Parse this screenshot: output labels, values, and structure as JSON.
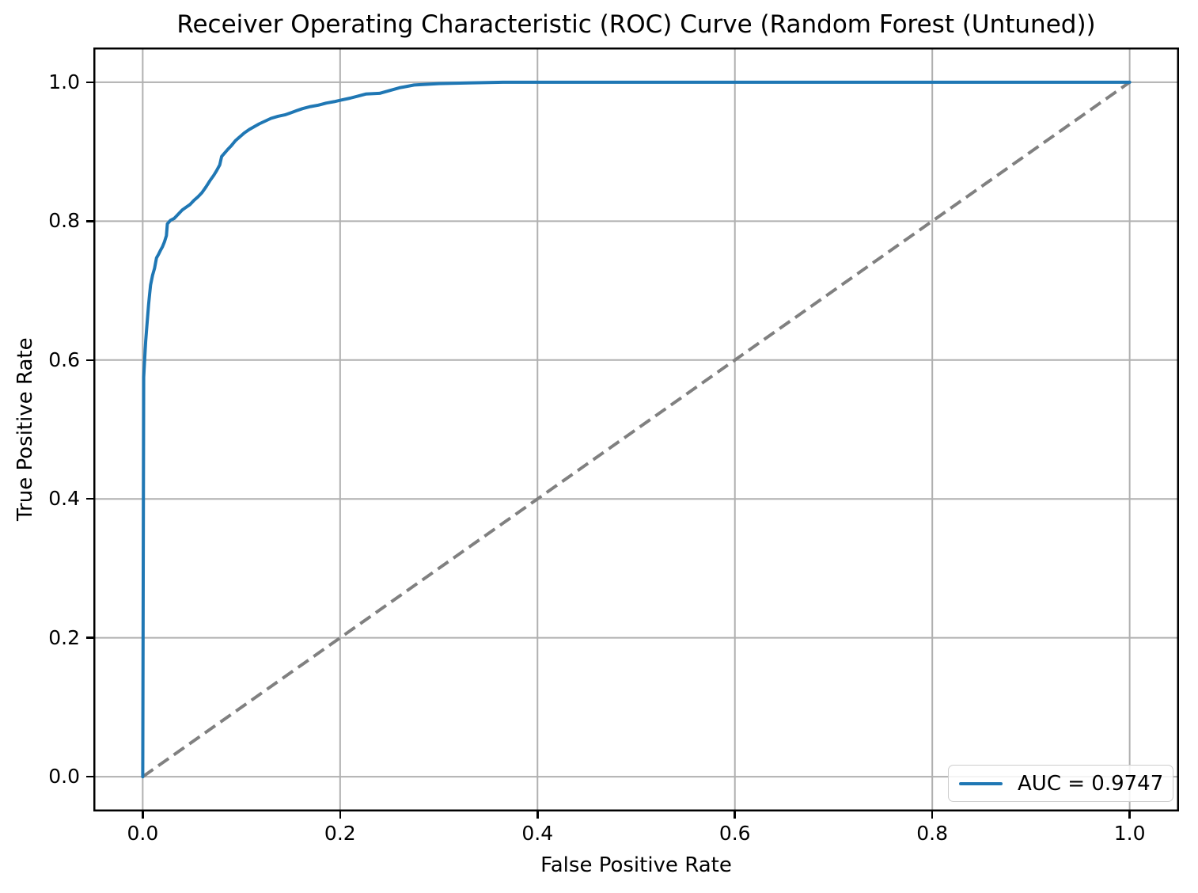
{
  "chart_data": {
    "type": "line",
    "title": "Receiver Operating Characteristic (ROC) Curve (Random Forest (Untuned))",
    "xlabel": "False Positive Rate",
    "ylabel": "True Positive Rate",
    "xlim": [
      -0.05,
      1.05
    ],
    "ylim": [
      -0.05,
      1.05
    ],
    "x_ticks": [
      0.0,
      0.2,
      0.4,
      0.6,
      0.8,
      1.0
    ],
    "x_tick_labels": [
      "0.0",
      "0.2",
      "0.4",
      "0.6",
      "0.8",
      "1.0"
    ],
    "y_ticks": [
      0.0,
      0.2,
      0.4,
      0.6,
      0.8,
      1.0
    ],
    "y_tick_labels": [
      "0.0",
      "0.2",
      "0.4",
      "0.6",
      "0.8",
      "1.0"
    ],
    "grid": true,
    "auc": 0.9747,
    "legend": {
      "label": "AUC = 0.9747",
      "position": "lower right"
    },
    "colors": {
      "roc_curve": "#1f77b4",
      "chance_line": "#808080",
      "grid": "#b0b0b0",
      "spine": "#000000",
      "background": "#ffffff",
      "legend_border": "#cccccc"
    },
    "series": [
      {
        "name": "roc-curve",
        "legend": "AUC = 0.9747",
        "color": "#1f77b4",
        "style": "solid",
        "width": 4,
        "points": [
          [
            0.0,
            0.0
          ],
          [
            0.001,
            0.575
          ],
          [
            0.002,
            0.603
          ],
          [
            0.003,
            0.627
          ],
          [
            0.004,
            0.646
          ],
          [
            0.005,
            0.663
          ],
          [
            0.006,
            0.68
          ],
          [
            0.007,
            0.695
          ],
          [
            0.008,
            0.708
          ],
          [
            0.01,
            0.722
          ],
          [
            0.012,
            0.732
          ],
          [
            0.013,
            0.74
          ],
          [
            0.014,
            0.747
          ],
          [
            0.016,
            0.752
          ],
          [
            0.018,
            0.758
          ],
          [
            0.02,
            0.763
          ],
          [
            0.022,
            0.77
          ],
          [
            0.024,
            0.779
          ],
          [
            0.025,
            0.796
          ],
          [
            0.028,
            0.801
          ],
          [
            0.032,
            0.804
          ],
          [
            0.036,
            0.81
          ],
          [
            0.04,
            0.816
          ],
          [
            0.044,
            0.82
          ],
          [
            0.048,
            0.824
          ],
          [
            0.052,
            0.83
          ],
          [
            0.056,
            0.835
          ],
          [
            0.06,
            0.841
          ],
          [
            0.064,
            0.849
          ],
          [
            0.068,
            0.858
          ],
          [
            0.072,
            0.866
          ],
          [
            0.075,
            0.873
          ],
          [
            0.078,
            0.881
          ],
          [
            0.08,
            0.893
          ],
          [
            0.083,
            0.898
          ],
          [
            0.086,
            0.903
          ],
          [
            0.09,
            0.909
          ],
          [
            0.094,
            0.916
          ],
          [
            0.098,
            0.921
          ],
          [
            0.103,
            0.927
          ],
          [
            0.108,
            0.932
          ],
          [
            0.113,
            0.936
          ],
          [
            0.118,
            0.94
          ],
          [
            0.124,
            0.944
          ],
          [
            0.13,
            0.948
          ],
          [
            0.137,
            0.951
          ],
          [
            0.144,
            0.953
          ],
          [
            0.15,
            0.956
          ],
          [
            0.156,
            0.959
          ],
          [
            0.162,
            0.962
          ],
          [
            0.17,
            0.965
          ],
          [
            0.178,
            0.967
          ],
          [
            0.186,
            0.97
          ],
          [
            0.194,
            0.972
          ],
          [
            0.2,
            0.974
          ],
          [
            0.21,
            0.977
          ],
          [
            0.218,
            0.98
          ],
          [
            0.226,
            0.983
          ],
          [
            0.24,
            0.984
          ],
          [
            0.25,
            0.988
          ],
          [
            0.26,
            0.992
          ],
          [
            0.275,
            0.996
          ],
          [
            0.3,
            0.998
          ],
          [
            0.33,
            0.999
          ],
          [
            0.365,
            1.0
          ],
          [
            1.0,
            1.0
          ]
        ]
      },
      {
        "name": "chance-line",
        "color": "#808080",
        "style": "dashed",
        "width": 4,
        "points": [
          [
            0.0,
            0.0
          ],
          [
            1.0,
            1.0
          ]
        ]
      }
    ]
  }
}
